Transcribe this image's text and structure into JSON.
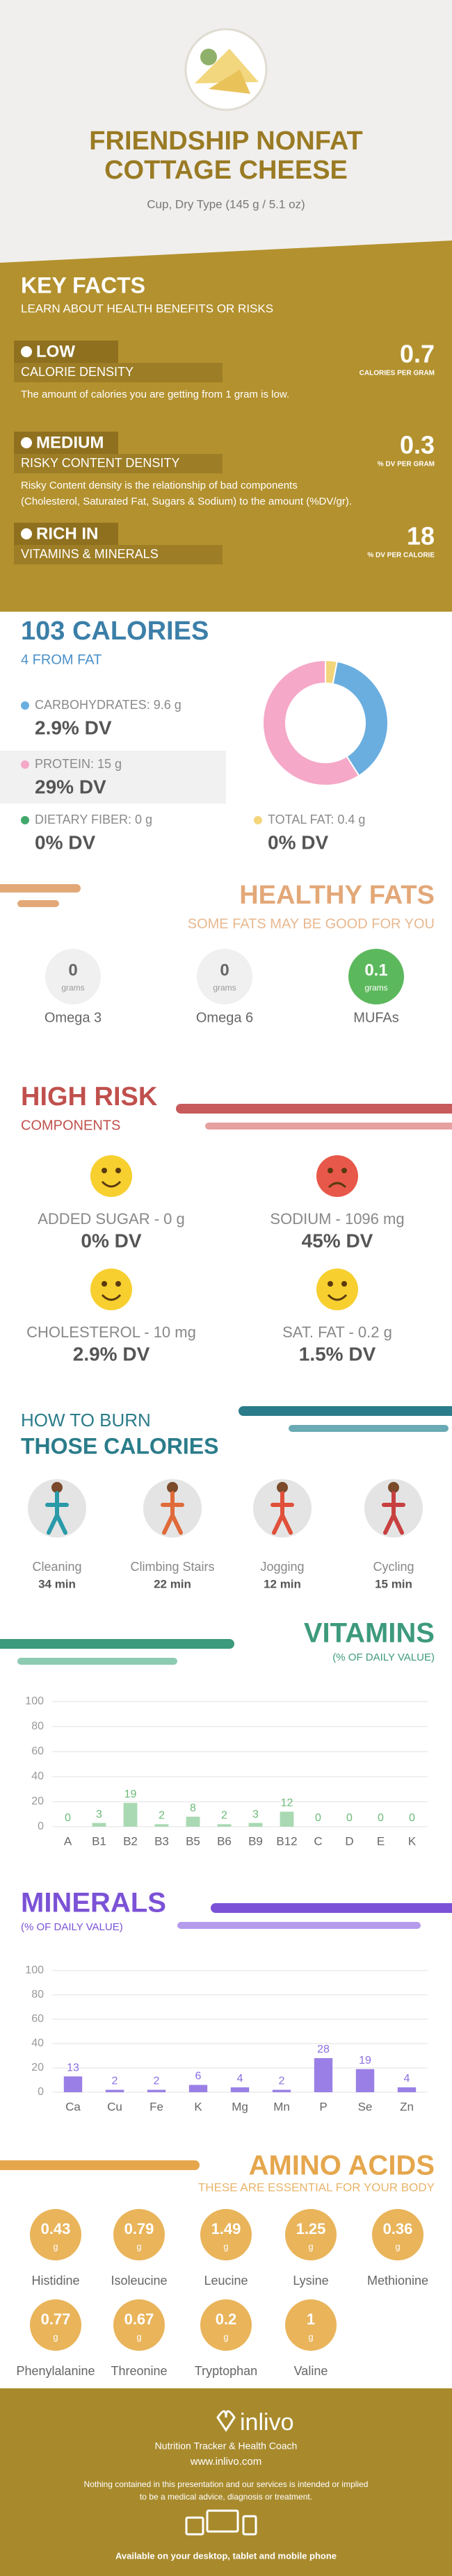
{
  "header": {
    "title_lines": [
      "FRIENDSHIP NONFAT",
      "COTTAGE CHEESE"
    ],
    "subtitle": "Cup, Dry Type (145 g / 5.1 oz)"
  },
  "key_facts": {
    "title": "KEY FACTS",
    "subtitle": "LEARN ABOUT HEALTH BENEFITS OR RISKS",
    "items": [
      {
        "level": "LOW",
        "label": "CALORIE DENSITY",
        "value": "0.7",
        "unit": "CALORIES PER GRAM",
        "description": [
          "The amount of calories you are getting from 1 gram is low."
        ]
      },
      {
        "level": "MEDIUM",
        "label": "RISKY CONTENT DENSITY",
        "value": "0.3",
        "unit": "% DV PER GRAM",
        "description": [
          "Risky Content density is the relationship of bad components",
          "(Cholesterol, Saturated Fat, Sugars & Sodium) to the amount (%DV/gr)."
        ]
      },
      {
        "level": "RICH IN",
        "label": "VITAMINS & MINERALS",
        "value": "18",
        "unit": "% DV PER CALORIE",
        "description": []
      }
    ]
  },
  "calories": {
    "title": "103 CALORIES",
    "subtitle": "4 FROM FAT",
    "items": [
      {
        "label": "CARBOHYDRATES: 9.6 g",
        "dv": "2.9% DV"
      },
      {
        "label": "PROTEIN: 15 g",
        "dv": "29% DV"
      },
      {
        "label": "DIETARY FIBER: 0 g",
        "dv": "0% DV"
      },
      {
        "label": "TOTAL FAT: 0.4 g",
        "dv": "0% DV"
      }
    ]
  },
  "healthy_fats": {
    "title": "HEALTHY FATS",
    "subtitle": "SOME FATS MAY BE GOOD FOR YOU",
    "unit": "grams",
    "items": [
      {
        "value": "0",
        "name": "Omega 3"
      },
      {
        "value": "0",
        "name": "Omega 6"
      },
      {
        "value": "0.1",
        "name": "MUFAs"
      }
    ]
  },
  "high_risk": {
    "title": "HIGH RISK",
    "subtitle": "COMPONENTS",
    "items": [
      {
        "label": "ADDED SUGAR - 0 g",
        "dv": "0% DV"
      },
      {
        "label": "SODIUM - 1096 mg",
        "dv": "45% DV"
      },
      {
        "label": "CHOLESTEROL - 10 mg",
        "dv": "2.9% DV"
      },
      {
        "label": "SAT. FAT - 0.2 g",
        "dv": "1.5% DV"
      }
    ]
  },
  "burn": {
    "title_lines": [
      "HOW TO BURN",
      "THOSE CALORIES"
    ],
    "items": [
      {
        "name": "Cleaning",
        "time": "34 min"
      },
      {
        "name": "Climbing Stairs",
        "time": "22 min"
      },
      {
        "name": "Jogging",
        "time": "12 min"
      },
      {
        "name": "Cycling",
        "time": "15 min"
      }
    ]
  },
  "chart_data": [
    {
      "type": "pie",
      "values": [
        3,
        38,
        59
      ],
      "colors": [
        "#f3d57c",
        "#6aaee0",
        "#f5a8c8"
      ]
    },
    {
      "type": "bar",
      "title": "VITAMINS",
      "subtitle": "(% OF DAILY VALUE)",
      "categories": [
        "A",
        "B1",
        "B2",
        "B3",
        "B5",
        "B6",
        "B9",
        "B12",
        "C",
        "D",
        "E",
        "K"
      ],
      "values": [
        0,
        3,
        19,
        2,
        8,
        2,
        3,
        12,
        0,
        0,
        0,
        0
      ],
      "color": "#a9d9b2",
      "label_color": "#6cbb78",
      "ylim": [
        0,
        100
      ],
      "yticks": [
        0,
        20,
        40,
        60,
        80,
        100
      ],
      "grid": true
    },
    {
      "type": "bar",
      "title": "MINERALS",
      "subtitle": "(% OF DAILY VALUE)",
      "categories": [
        "Ca",
        "Cu",
        "Fe",
        "K",
        "Mg",
        "Mn",
        "P",
        "Se",
        "Zn"
      ],
      "values": [
        13,
        2,
        2,
        6,
        4,
        2,
        28,
        19,
        4
      ],
      "color": "#9a80e6",
      "label_color": "#8a6fe0",
      "ylim": [
        0,
        100
      ],
      "yticks": [
        0,
        20,
        40,
        60,
        80,
        100
      ],
      "grid": true
    }
  ],
  "amino_acids": {
    "title": "AMINO ACIDS",
    "subtitle": "THESE ARE ESSENTIAL FOR YOUR BODY",
    "unit": "g",
    "items": [
      {
        "value": "0.43",
        "name": "Histidine"
      },
      {
        "value": "0.79",
        "name": "Isoleucine"
      },
      {
        "value": "1.49",
        "name": "Leucine"
      },
      {
        "value": "1.25",
        "name": "Lysine"
      },
      {
        "value": "0.36",
        "name": "Methionine"
      },
      {
        "value": "0.77",
        "name": "Phenylalanine"
      },
      {
        "value": "0.67",
        "name": "Threonine"
      },
      {
        "value": "0.2",
        "name": "Tryptophan"
      },
      {
        "value": "1",
        "name": "Valine"
      }
    ]
  },
  "footer": {
    "brand": "inlivo",
    "tagline": "Nutrition Tracker & Health Coach",
    "url": "www.inlivo.com",
    "disclaimer": [
      "Nothing contained in this presentation and our services is intended or implied",
      "to be a medical advice, diagnosis or treatment."
    ],
    "availability": "Available on your desktop, tablet and mobile phone"
  }
}
